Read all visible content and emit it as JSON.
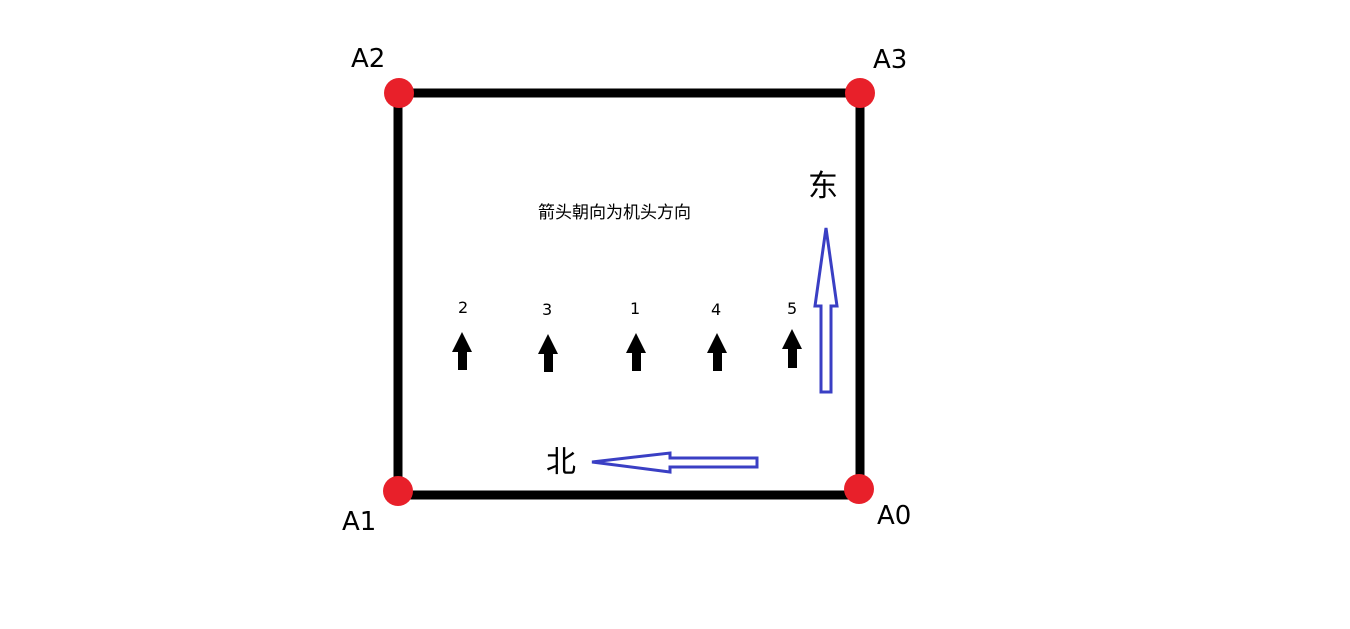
{
  "corners": [
    {
      "id": "a0",
      "label": "A0"
    },
    {
      "id": "a1",
      "label": "A1"
    },
    {
      "id": "a2",
      "label": "A2"
    },
    {
      "id": "a3",
      "label": "A3"
    }
  ],
  "directions": {
    "east": "东",
    "north": "北"
  },
  "note": "箭头朝向为机头方向",
  "aircraft": [
    {
      "id": "2",
      "label": "2"
    },
    {
      "id": "3",
      "label": "3"
    },
    {
      "id": "1",
      "label": "1"
    },
    {
      "id": "4",
      "label": "4"
    },
    {
      "id": "5",
      "label": "5"
    }
  ],
  "colors": {
    "frame": "#000000",
    "corner_dot": "#e8202a",
    "compass_arrow": "#3a3fc4"
  }
}
